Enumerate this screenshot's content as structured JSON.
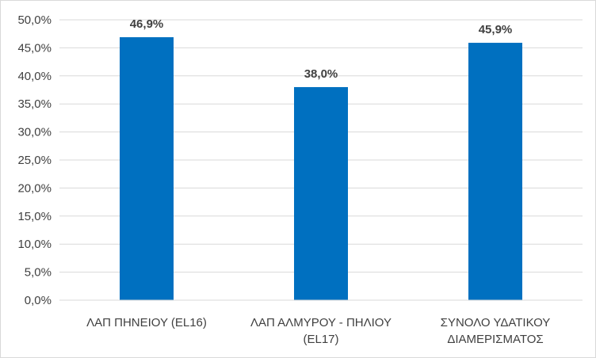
{
  "chart_data": {
    "type": "bar",
    "categories": [
      [
        "ΛΑΠ ΠΗΝΕΙΟΥ (EL16)"
      ],
      [
        "ΛΑΠ ΑΛΜΥΡΟΥ - ΠΗΛΙΟΥ",
        "(EL17)"
      ],
      [
        "ΣΥΝΟΛΟ ΥΔΑΤΙΚΟΥ",
        "ΔΙΑΜΕΡΙΣΜΑΤΟΣ"
      ]
    ],
    "values": [
      46.9,
      38.0,
      45.9
    ],
    "data_labels": [
      "46,9%",
      "38,0%",
      "45,9%"
    ],
    "y_ticks": [
      "0,0%",
      "5,0%",
      "10,0%",
      "15,0%",
      "20,0%",
      "25,0%",
      "30,0%",
      "35,0%",
      "40,0%",
      "45,0%",
      "50,0%"
    ],
    "ylim": [
      0,
      50
    ],
    "grid": true,
    "bar_color": "#0070c0",
    "grid_color": "#d9d9d9",
    "text_color": "#404040"
  }
}
